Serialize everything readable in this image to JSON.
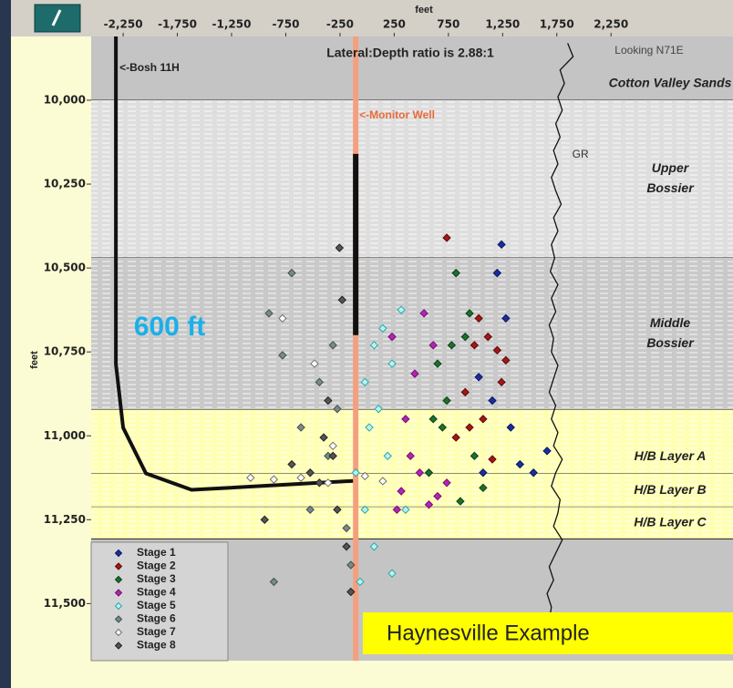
{
  "chart_data": {
    "type": "scatter",
    "title": "Lateral:Depth ratio is 2.88:1",
    "view": "Looking N71E",
    "scale_note": "600 ft",
    "caption": "Haynesville Example",
    "xlabel": "feet",
    "ylabel": "feet",
    "xlim": [
      -2545,
      3375
    ],
    "ylim": [
      9810,
      11670
    ],
    "y_inverted": true,
    "xticks": [
      {
        "value": -2250,
        "label": "-2,250"
      },
      {
        "value": -1750,
        "label": "-1,750"
      },
      {
        "value": -1250,
        "label": "-1,250"
      },
      -750,
      -250,
      250,
      750,
      {
        "value": 1250,
        "label": "1,250"
      },
      {
        "value": 1750,
        "label": "1,750"
      },
      {
        "value": 2250,
        "label": "2,250"
      }
    ],
    "yticks": [
      {
        "value": 10000,
        "label": "10,000"
      },
      {
        "value": 10250,
        "label": "10,250"
      },
      {
        "value": 10500,
        "label": "10,500"
      },
      {
        "value": 10750,
        "label": "10,750"
      },
      {
        "value": 11000,
        "label": "11,000"
      },
      {
        "value": 11250,
        "label": "11,250"
      },
      {
        "value": 11500,
        "label": "11,500"
      }
    ],
    "legend": "bottom-left",
    "layers": [
      {
        "name": [
          "Cotton Valley Sands"
        ],
        "top": 9810,
        "bottom": 10000,
        "color": "#c4c4c4",
        "hatched": false
      },
      {
        "name": [
          "Upper",
          "Bossier"
        ],
        "top": 10000,
        "bottom": 10469,
        "color": "#dedede",
        "hatched": true
      },
      {
        "name": [
          "Middle",
          "Bossier"
        ],
        "top": 10469,
        "bottom": 10922,
        "color": "#c9c9c9",
        "hatched": true
      },
      {
        "name": [
          "H/B Layer A"
        ],
        "top": 10922,
        "bottom": 11112,
        "color": "#ffffb4",
        "hatched": true
      },
      {
        "name": [
          "H/B  Layer B"
        ],
        "top": 11112,
        "bottom": 11212,
        "color": "#ffffb4",
        "hatched": true
      },
      {
        "name": [
          "H/B  Layer C"
        ],
        "top": 11212,
        "bottom": 11307,
        "color": "#ffffb4",
        "hatched": true
      }
    ],
    "wells": [
      {
        "label": "<-Bosh 11H",
        "color": "#111111",
        "width": 4,
        "x": [
          -2317,
          -2317,
          -2250,
          -2040,
          -1619,
          -105
        ],
        "y": [
          9810,
          10786,
          10976,
          11112,
          11161,
          11134
        ]
      },
      {
        "label": "<-Monitor Well",
        "color": "#f4a080",
        "width": 6,
        "x": [
          -105,
          -105
        ],
        "y": [
          9810,
          11670
        ]
      },
      {
        "color": "#111111",
        "width": 6,
        "x": [
          -105,
          -105
        ],
        "y": [
          10160,
          10700
        ]
      }
    ],
    "gr_log": {
      "label": "GR",
      "color": "#111111",
      "x": [
        1850,
        1900,
        1780,
        1820,
        1760,
        1800,
        1740,
        1780,
        1720,
        1760,
        1700,
        1740,
        1790,
        1720,
        1760,
        1700,
        1730,
        1690,
        1760,
        1700,
        1740,
        1680,
        1720,
        1700,
        1760,
        1720,
        1680,
        1740,
        1700,
        1760,
        1720,
        1800,
        1740,
        1700,
        1780,
        1760,
        1720,
        1800,
        1740,
        1680,
        1720,
        1660,
        1700,
        1680,
        1720,
        1690
      ],
      "y": [
        9830,
        9870,
        9910,
        9950,
        9990,
        10030,
        10070,
        10110,
        10150,
        10190,
        10230,
        10270,
        10310,
        10350,
        10390,
        10430,
        10470,
        10510,
        10550,
        10590,
        10630,
        10670,
        10710,
        10750,
        10790,
        10830,
        10870,
        10910,
        10950,
        10990,
        11030,
        11070,
        11110,
        11150,
        11190,
        11230,
        11270,
        11310,
        11350,
        11390,
        11430,
        11470,
        11510,
        11550,
        11590,
        11630
      ]
    },
    "series": [
      {
        "name": "Stage 1",
        "color": "#1a2f9c",
        "edgecolor": "#0a1460",
        "x": [
          1240,
          1535,
          1660,
          1200,
          1155,
          1410,
          1030,
          1280,
          1070,
          1325
        ],
        "values": [
          10430,
          11110,
          11045,
          10515,
          10895,
          11085,
          10825,
          10650,
          11110,
          10975
        ]
      },
      {
        "name": "Stage 2",
        "color": "#a01818",
        "edgecolor": "#600808",
        "x": [
          735,
          990,
          1115,
          1200,
          905,
          1070,
          1240,
          820,
          1155,
          1030,
          1280,
          945
        ],
        "values": [
          10410,
          10730,
          10705,
          10745,
          10870,
          10950,
          10840,
          11005,
          11070,
          10650,
          10775,
          10975
        ]
      },
      {
        "name": "Stage 3",
        "color": "#1e6e30",
        "edgecolor": "#0c4018",
        "x": [
          820,
          650,
          905,
          735,
          570,
          990,
          860,
          695,
          945,
          780,
          610,
          1070
        ],
        "values": [
          10515,
          10785,
          10705,
          10895,
          11110,
          11060,
          11195,
          10975,
          10635,
          10730,
          10950,
          11155
        ]
      },
      {
        "name": "Stage 4",
        "color": "#b424b4",
        "edgecolor": "#701070",
        "x": [
          315,
          485,
          570,
          400,
          650,
          230,
          440,
          355,
          610,
          735,
          525,
          275
        ],
        "values": [
          11165,
          11110,
          11205,
          11060,
          11180,
          10705,
          10815,
          10950,
          10730,
          11140,
          10635,
          11220
        ]
      },
      {
        "name": "Stage 5",
        "color": "#bff0f0",
        "edgecolor": "#28a8a8",
        "x": [
          65,
          145,
          230,
          315,
          -20,
          105,
          -105,
          -20,
          65,
          230,
          355,
          190,
          20,
          -65
        ],
        "values": [
          10730,
          10680,
          10785,
          10625,
          10840,
          10920,
          11110,
          11220,
          11330,
          11410,
          11220,
          11060,
          10975,
          11435
        ]
      },
      {
        "name": "Stage 6",
        "color": "#7a8a8a",
        "edgecolor": "#405050",
        "x": [
          -905,
          -695,
          -440,
          -275,
          -360,
          -525,
          -190,
          -860,
          -610,
          -780,
          -315,
          -150
        ],
        "values": [
          10635,
          10515,
          10840,
          10920,
          11060,
          11220,
          11275,
          11435,
          10975,
          10760,
          10730,
          11385
        ]
      },
      {
        "name": "Stage 7",
        "color": "#ffffff",
        "edgecolor": "#707070",
        "x": [
          -1075,
          -860,
          -610,
          -360,
          -20,
          145,
          -485,
          -315,
          -780
        ],
        "values": [
          11125,
          11130,
          11125,
          11140,
          11120,
          11135,
          10785,
          11030,
          10650
        ]
      },
      {
        "name": "Stage 8",
        "color": "#555555",
        "edgecolor": "#222222",
        "x": [
          -255,
          -230,
          -360,
          -440,
          -275,
          -190,
          -525,
          -400,
          -150,
          -315,
          -945,
          -695
        ],
        "values": [
          10440,
          10595,
          10895,
          11140,
          11220,
          11330,
          11110,
          11005,
          11465,
          11060,
          11250,
          11085
        ]
      }
    ]
  }
}
